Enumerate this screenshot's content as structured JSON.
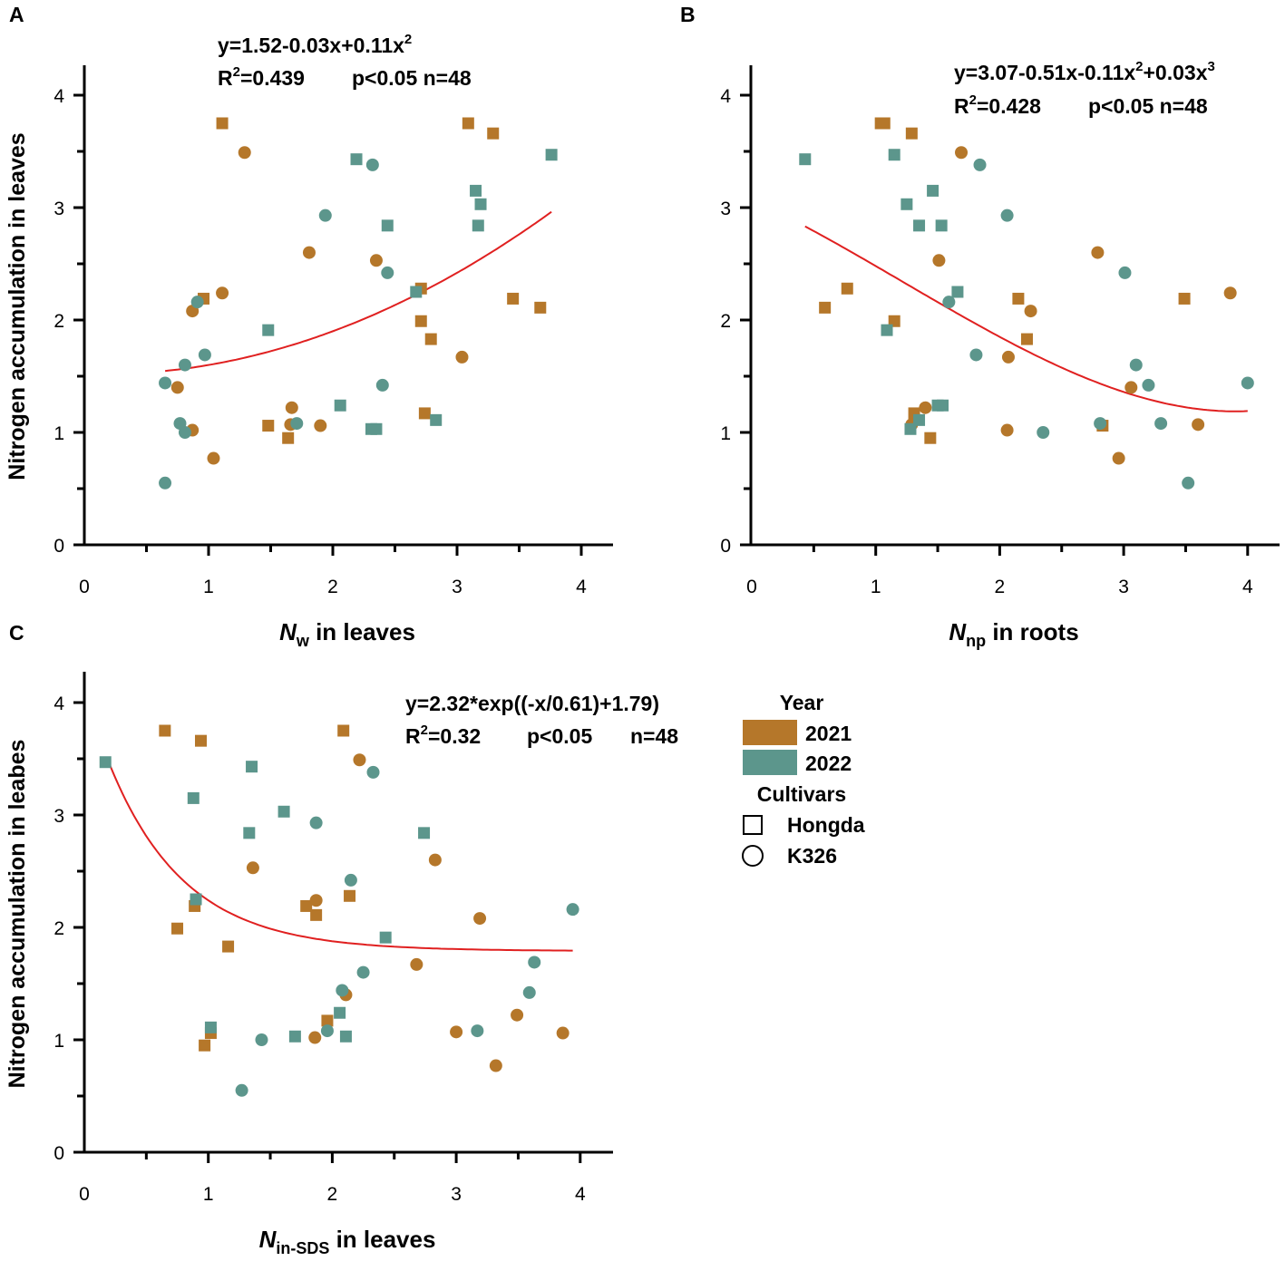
{
  "colors": {
    "y2021": "#B5772A",
    "y2022": "#5C968C",
    "fit": "#E02020",
    "axis": "#000000"
  },
  "legend": {
    "year_title": "Year",
    "year_2021": "2021",
    "year_2022": "2022",
    "cultivars_title": "Cultivars",
    "hongda": "Hongda",
    "k326": "K326"
  },
  "chart_data": [
    {
      "type": "scatter",
      "panel": "A",
      "equation": "y=1.52-0.03x+0.11x",
      "equation_sup": "2",
      "equation_tail": "",
      "r2": "=0.439",
      "p": "p<0.05 n=48",
      "n": "",
      "xlabel_main": "N",
      "xlabel_sub": "w",
      "xlabel_rest": " in leaves",
      "ylabel": "Nitrogen accumulation in leaves",
      "xlim": [
        0,
        4.25
      ],
      "ylim": [
        0,
        4.25
      ],
      "xticks": [
        0,
        1,
        2,
        3,
        4
      ],
      "yticks": [
        0,
        1,
        2,
        3,
        4
      ],
      "fit": {
        "model": "poly",
        "coef": [
          1.52,
          -0.03,
          0.11
        ],
        "xrange": [
          0.65,
          3.76
        ]
      },
      "points": [
        {
          "x": 1.11,
          "y": 3.75,
          "year": "2021",
          "cultivar": "Hongda"
        },
        {
          "x": 1.29,
          "y": 3.49,
          "year": "2021",
          "cultivar": "K326"
        },
        {
          "x": 3.09,
          "y": 3.75,
          "year": "2021",
          "cultivar": "Hongda"
        },
        {
          "x": 3.29,
          "y": 3.66,
          "year": "2021",
          "cultivar": "Hongda"
        },
        {
          "x": 1.81,
          "y": 2.6,
          "year": "2021",
          "cultivar": "K326"
        },
        {
          "x": 2.35,
          "y": 2.53,
          "year": "2021",
          "cultivar": "K326"
        },
        {
          "x": 1.11,
          "y": 2.24,
          "year": "2021",
          "cultivar": "K326"
        },
        {
          "x": 0.96,
          "y": 2.19,
          "year": "2021",
          "cultivar": "Hongda"
        },
        {
          "x": 0.87,
          "y": 2.08,
          "year": "2021",
          "cultivar": "K326"
        },
        {
          "x": 2.71,
          "y": 2.28,
          "year": "2021",
          "cultivar": "Hongda"
        },
        {
          "x": 2.71,
          "y": 1.99,
          "year": "2021",
          "cultivar": "Hongda"
        },
        {
          "x": 2.79,
          "y": 1.83,
          "year": "2021",
          "cultivar": "Hongda"
        },
        {
          "x": 3.45,
          "y": 2.19,
          "year": "2021",
          "cultivar": "Hongda"
        },
        {
          "x": 3.67,
          "y": 2.11,
          "year": "2021",
          "cultivar": "Hongda"
        },
        {
          "x": 3.04,
          "y": 1.67,
          "year": "2021",
          "cultivar": "K326"
        },
        {
          "x": 0.75,
          "y": 1.4,
          "year": "2021",
          "cultivar": "K326"
        },
        {
          "x": 0.87,
          "y": 1.02,
          "year": "2021",
          "cultivar": "K326"
        },
        {
          "x": 1.04,
          "y": 0.77,
          "year": "2021",
          "cultivar": "K326"
        },
        {
          "x": 1.48,
          "y": 1.06,
          "year": "2021",
          "cultivar": "Hongda"
        },
        {
          "x": 1.67,
          "y": 1.22,
          "year": "2021",
          "cultivar": "K326"
        },
        {
          "x": 1.66,
          "y": 1.07,
          "year": "2021",
          "cultivar": "K326"
        },
        {
          "x": 1.64,
          "y": 0.95,
          "year": "2021",
          "cultivar": "Hongda"
        },
        {
          "x": 1.9,
          "y": 1.06,
          "year": "2021",
          "cultivar": "K326"
        },
        {
          "x": 2.74,
          "y": 1.17,
          "year": "2021",
          "cultivar": "Hongda"
        },
        {
          "x": 0.65,
          "y": 1.44,
          "year": "2022",
          "cultivar": "K326"
        },
        {
          "x": 0.65,
          "y": 0.55,
          "year": "2022",
          "cultivar": "K326"
        },
        {
          "x": 0.77,
          "y": 1.08,
          "year": "2022",
          "cultivar": "K326"
        },
        {
          "x": 0.81,
          "y": 1.0,
          "year": "2022",
          "cultivar": "K326"
        },
        {
          "x": 0.81,
          "y": 1.6,
          "year": "2022",
          "cultivar": "K326"
        },
        {
          "x": 0.97,
          "y": 1.69,
          "year": "2022",
          "cultivar": "K326"
        },
        {
          "x": 0.91,
          "y": 2.16,
          "year": "2022",
          "cultivar": "K326"
        },
        {
          "x": 1.48,
          "y": 1.91,
          "year": "2022",
          "cultivar": "Hongda"
        },
        {
          "x": 1.71,
          "y": 1.08,
          "year": "2022",
          "cultivar": "K326"
        },
        {
          "x": 1.94,
          "y": 2.93,
          "year": "2022",
          "cultivar": "K326"
        },
        {
          "x": 2.19,
          "y": 3.43,
          "year": "2022",
          "cultivar": "Hongda"
        },
        {
          "x": 2.32,
          "y": 3.38,
          "year": "2022",
          "cultivar": "K326"
        },
        {
          "x": 2.44,
          "y": 2.84,
          "year": "2022",
          "cultivar": "Hongda"
        },
        {
          "x": 2.44,
          "y": 2.42,
          "year": "2022",
          "cultivar": "K326"
        },
        {
          "x": 2.67,
          "y": 2.25,
          "year": "2022",
          "cultivar": "Hongda"
        },
        {
          "x": 2.06,
          "y": 1.24,
          "year": "2022",
          "cultivar": "Hongda"
        },
        {
          "x": 2.31,
          "y": 1.03,
          "year": "2022",
          "cultivar": "Hongda"
        },
        {
          "x": 2.35,
          "y": 1.03,
          "year": "2022",
          "cultivar": "Hongda"
        },
        {
          "x": 2.4,
          "y": 1.42,
          "year": "2022",
          "cultivar": "K326"
        },
        {
          "x": 2.83,
          "y": 1.11,
          "year": "2022",
          "cultivar": "Hongda"
        },
        {
          "x": 3.15,
          "y": 3.15,
          "year": "2022",
          "cultivar": "Hongda"
        },
        {
          "x": 3.19,
          "y": 3.03,
          "year": "2022",
          "cultivar": "Hongda"
        },
        {
          "x": 3.17,
          "y": 2.84,
          "year": "2022",
          "cultivar": "Hongda"
        },
        {
          "x": 3.76,
          "y": 3.47,
          "year": "2022",
          "cultivar": "Hongda"
        }
      ]
    },
    {
      "type": "scatter",
      "panel": "B",
      "equation": "y=3.07-0.51x-0.11x",
      "equation_sup": "2",
      "equation_tail": "+0.03x",
      "equation_sup2": "3",
      "r2": "=0.428",
      "p": "p<0.05 n=48",
      "n": "",
      "xlabel_main": "N",
      "xlabel_sub": "np",
      "xlabel_rest": " in roots",
      "ylabel": "",
      "xlim": [
        0,
        4.25
      ],
      "ylim": [
        0,
        4.25
      ],
      "xticks": [
        0,
        1,
        2,
        3,
        4
      ],
      "yticks": [
        0,
        1,
        2,
        3,
        4
      ],
      "fit": {
        "model": "poly",
        "coef": [
          3.07,
          -0.51,
          -0.11,
          0.03
        ],
        "xrange": [
          0.43,
          4.0
        ]
      },
      "points": [
        {
          "x": 1.04,
          "y": 3.75,
          "year": "2021",
          "cultivar": "Hongda"
        },
        {
          "x": 1.07,
          "y": 3.75,
          "year": "2021",
          "cultivar": "Hongda"
        },
        {
          "x": 1.29,
          "y": 3.66,
          "year": "2021",
          "cultivar": "Hongda"
        },
        {
          "x": 1.69,
          "y": 3.49,
          "year": "2021",
          "cultivar": "K326"
        },
        {
          "x": 0.59,
          "y": 2.11,
          "year": "2021",
          "cultivar": "Hongda"
        },
        {
          "x": 0.77,
          "y": 2.28,
          "year": "2021",
          "cultivar": "Hongda"
        },
        {
          "x": 1.15,
          "y": 1.99,
          "year": "2021",
          "cultivar": "Hongda"
        },
        {
          "x": 1.51,
          "y": 2.53,
          "year": "2021",
          "cultivar": "K326"
        },
        {
          "x": 2.15,
          "y": 2.19,
          "year": "2021",
          "cultivar": "Hongda"
        },
        {
          "x": 2.25,
          "y": 2.08,
          "year": "2021",
          "cultivar": "K326"
        },
        {
          "x": 2.22,
          "y": 1.83,
          "year": "2021",
          "cultivar": "Hongda"
        },
        {
          "x": 2.07,
          "y": 1.67,
          "year": "2021",
          "cultivar": "K326"
        },
        {
          "x": 2.79,
          "y": 2.6,
          "year": "2021",
          "cultivar": "K326"
        },
        {
          "x": 3.49,
          "y": 2.19,
          "year": "2021",
          "cultivar": "Hongda"
        },
        {
          "x": 3.86,
          "y": 2.24,
          "year": "2021",
          "cultivar": "K326"
        },
        {
          "x": 3.06,
          "y": 1.4,
          "year": "2021",
          "cultivar": "K326"
        },
        {
          "x": 1.31,
          "y": 1.17,
          "year": "2021",
          "cultivar": "Hongda"
        },
        {
          "x": 1.4,
          "y": 1.22,
          "year": "2021",
          "cultivar": "K326"
        },
        {
          "x": 1.29,
          "y": 1.07,
          "year": "2021",
          "cultivar": "K326"
        },
        {
          "x": 1.44,
          "y": 0.95,
          "year": "2021",
          "cultivar": "Hongda"
        },
        {
          "x": 2.06,
          "y": 1.02,
          "year": "2021",
          "cultivar": "K326"
        },
        {
          "x": 2.83,
          "y": 1.06,
          "year": "2021",
          "cultivar": "Hongda"
        },
        {
          "x": 2.96,
          "y": 0.77,
          "year": "2021",
          "cultivar": "K326"
        },
        {
          "x": 3.6,
          "y": 1.07,
          "year": "2021",
          "cultivar": "K326"
        },
        {
          "x": 0.43,
          "y": 3.43,
          "year": "2022",
          "cultivar": "Hongda"
        },
        {
          "x": 1.15,
          "y": 3.47,
          "year": "2022",
          "cultivar": "Hongda"
        },
        {
          "x": 1.25,
          "y": 3.03,
          "year": "2022",
          "cultivar": "Hongda"
        },
        {
          "x": 1.35,
          "y": 2.84,
          "year": "2022",
          "cultivar": "Hongda"
        },
        {
          "x": 1.46,
          "y": 3.15,
          "year": "2022",
          "cultivar": "Hongda"
        },
        {
          "x": 1.53,
          "y": 2.84,
          "year": "2022",
          "cultivar": "Hongda"
        },
        {
          "x": 1.84,
          "y": 3.38,
          "year": "2022",
          "cultivar": "K326"
        },
        {
          "x": 2.06,
          "y": 2.93,
          "year": "2022",
          "cultivar": "K326"
        },
        {
          "x": 1.66,
          "y": 2.25,
          "year": "2022",
          "cultivar": "Hongda"
        },
        {
          "x": 1.59,
          "y": 2.16,
          "year": "2022",
          "cultivar": "K326"
        },
        {
          "x": 1.09,
          "y": 1.91,
          "year": "2022",
          "cultivar": "Hongda"
        },
        {
          "x": 1.81,
          "y": 1.69,
          "year": "2022",
          "cultivar": "K326"
        },
        {
          "x": 1.28,
          "y": 1.03,
          "year": "2022",
          "cultivar": "Hongda"
        },
        {
          "x": 1.35,
          "y": 1.11,
          "year": "2022",
          "cultivar": "Hongda"
        },
        {
          "x": 1.54,
          "y": 1.24,
          "year": "2022",
          "cultivar": "Hongda"
        },
        {
          "x": 2.35,
          "y": 1.0,
          "year": "2022",
          "cultivar": "K326"
        },
        {
          "x": 2.81,
          "y": 1.08,
          "year": "2022",
          "cultivar": "K326"
        },
        {
          "x": 3.01,
          "y": 2.42,
          "year": "2022",
          "cultivar": "K326"
        },
        {
          "x": 3.1,
          "y": 1.6,
          "year": "2022",
          "cultivar": "K326"
        },
        {
          "x": 3.2,
          "y": 1.42,
          "year": "2022",
          "cultivar": "K326"
        },
        {
          "x": 3.3,
          "y": 1.08,
          "year": "2022",
          "cultivar": "K326"
        },
        {
          "x": 3.52,
          "y": 0.55,
          "year": "2022",
          "cultivar": "K326"
        },
        {
          "x": 4.0,
          "y": 1.44,
          "year": "2022",
          "cultivar": "K326"
        },
        {
          "x": 1.5,
          "y": 1.24,
          "year": "2022",
          "cultivar": "Hongda"
        }
      ]
    },
    {
      "type": "scatter",
      "panel": "C",
      "equation": "y=2.32*exp((-x/0.61)+1.79)",
      "equation_sup": "",
      "equation_tail": "",
      "r2": "=0.32",
      "p": "p<0.05",
      "n": "n=48",
      "xlabel_main": "N",
      "xlabel_sub": "in-SDS",
      "xlabel_rest": " in leaves",
      "ylabel": "Nitrogen accumulation in leabes",
      "xlim": [
        0,
        4.25
      ],
      "ylim": [
        0,
        4.25
      ],
      "xticks": [
        0,
        1,
        2,
        3,
        4
      ],
      "yticks": [
        0,
        1,
        2,
        3,
        4
      ],
      "fit": {
        "model": "exp",
        "a": 2.32,
        "t": 0.61,
        "c": 1.79,
        "xrange": [
          0.18,
          3.94
        ]
      },
      "points": [
        {
          "x": 0.65,
          "y": 3.75,
          "year": "2021",
          "cultivar": "Hongda"
        },
        {
          "x": 0.94,
          "y": 3.66,
          "year": "2021",
          "cultivar": "Hongda"
        },
        {
          "x": 2.09,
          "y": 3.75,
          "year": "2021",
          "cultivar": "Hongda"
        },
        {
          "x": 2.22,
          "y": 3.49,
          "year": "2021",
          "cultivar": "K326"
        },
        {
          "x": 1.36,
          "y": 2.53,
          "year": "2021",
          "cultivar": "K326"
        },
        {
          "x": 2.83,
          "y": 2.6,
          "year": "2021",
          "cultivar": "K326"
        },
        {
          "x": 0.75,
          "y": 1.99,
          "year": "2021",
          "cultivar": "Hongda"
        },
        {
          "x": 0.89,
          "y": 2.19,
          "year": "2021",
          "cultivar": "Hongda"
        },
        {
          "x": 1.16,
          "y": 1.83,
          "year": "2021",
          "cultivar": "Hongda"
        },
        {
          "x": 1.79,
          "y": 2.19,
          "year": "2021",
          "cultivar": "Hongda"
        },
        {
          "x": 1.87,
          "y": 2.24,
          "year": "2021",
          "cultivar": "K326"
        },
        {
          "x": 1.87,
          "y": 2.11,
          "year": "2021",
          "cultivar": "Hongda"
        },
        {
          "x": 2.14,
          "y": 2.28,
          "year": "2021",
          "cultivar": "Hongda"
        },
        {
          "x": 3.19,
          "y": 2.08,
          "year": "2021",
          "cultivar": "K326"
        },
        {
          "x": 2.68,
          "y": 1.67,
          "year": "2021",
          "cultivar": "K326"
        },
        {
          "x": 2.11,
          "y": 1.4,
          "year": "2021",
          "cultivar": "K326"
        },
        {
          "x": 1.96,
          "y": 1.17,
          "year": "2021",
          "cultivar": "Hongda"
        },
        {
          "x": 1.86,
          "y": 1.02,
          "year": "2021",
          "cultivar": "K326"
        },
        {
          "x": 1.02,
          "y": 1.06,
          "year": "2021",
          "cultivar": "Hongda"
        },
        {
          "x": 0.97,
          "y": 0.95,
          "year": "2021",
          "cultivar": "Hongda"
        },
        {
          "x": 3.0,
          "y": 1.07,
          "year": "2021",
          "cultivar": "K326"
        },
        {
          "x": 3.32,
          "y": 0.77,
          "year": "2021",
          "cultivar": "K326"
        },
        {
          "x": 3.49,
          "y": 1.22,
          "year": "2021",
          "cultivar": "K326"
        },
        {
          "x": 3.86,
          "y": 1.06,
          "year": "2021",
          "cultivar": "K326"
        },
        {
          "x": 0.17,
          "y": 3.47,
          "year": "2022",
          "cultivar": "Hongda"
        },
        {
          "x": 0.88,
          "y": 3.15,
          "year": "2022",
          "cultivar": "Hongda"
        },
        {
          "x": 1.35,
          "y": 3.43,
          "year": "2022",
          "cultivar": "Hongda"
        },
        {
          "x": 1.33,
          "y": 2.84,
          "year": "2022",
          "cultivar": "Hongda"
        },
        {
          "x": 1.61,
          "y": 3.03,
          "year": "2022",
          "cultivar": "Hongda"
        },
        {
          "x": 1.87,
          "y": 2.93,
          "year": "2022",
          "cultivar": "K326"
        },
        {
          "x": 2.33,
          "y": 3.38,
          "year": "2022",
          "cultivar": "K326"
        },
        {
          "x": 2.74,
          "y": 2.84,
          "year": "2022",
          "cultivar": "Hongda"
        },
        {
          "x": 2.15,
          "y": 2.42,
          "year": "2022",
          "cultivar": "K326"
        },
        {
          "x": 0.9,
          "y": 2.25,
          "year": "2022",
          "cultivar": "Hongda"
        },
        {
          "x": 2.43,
          "y": 1.91,
          "year": "2022",
          "cultivar": "Hongda"
        },
        {
          "x": 3.94,
          "y": 2.16,
          "year": "2022",
          "cultivar": "K326"
        },
        {
          "x": 3.63,
          "y": 1.69,
          "year": "2022",
          "cultivar": "K326"
        },
        {
          "x": 2.25,
          "y": 1.6,
          "year": "2022",
          "cultivar": "K326"
        },
        {
          "x": 2.08,
          "y": 1.44,
          "year": "2022",
          "cultivar": "K326"
        },
        {
          "x": 3.59,
          "y": 1.42,
          "year": "2022",
          "cultivar": "K326"
        },
        {
          "x": 2.06,
          "y": 1.24,
          "year": "2022",
          "cultivar": "Hongda"
        },
        {
          "x": 1.02,
          "y": 1.11,
          "year": "2022",
          "cultivar": "Hongda"
        },
        {
          "x": 1.43,
          "y": 1.0,
          "year": "2022",
          "cultivar": "K326"
        },
        {
          "x": 1.7,
          "y": 1.03,
          "year": "2022",
          "cultivar": "Hongda"
        },
        {
          "x": 1.96,
          "y": 1.08,
          "year": "2022",
          "cultivar": "K326"
        },
        {
          "x": 2.11,
          "y": 1.03,
          "year": "2022",
          "cultivar": "Hongda"
        },
        {
          "x": 3.17,
          "y": 1.08,
          "year": "2022",
          "cultivar": "K326"
        },
        {
          "x": 1.27,
          "y": 0.55,
          "year": "2022",
          "cultivar": "K326"
        }
      ]
    }
  ]
}
